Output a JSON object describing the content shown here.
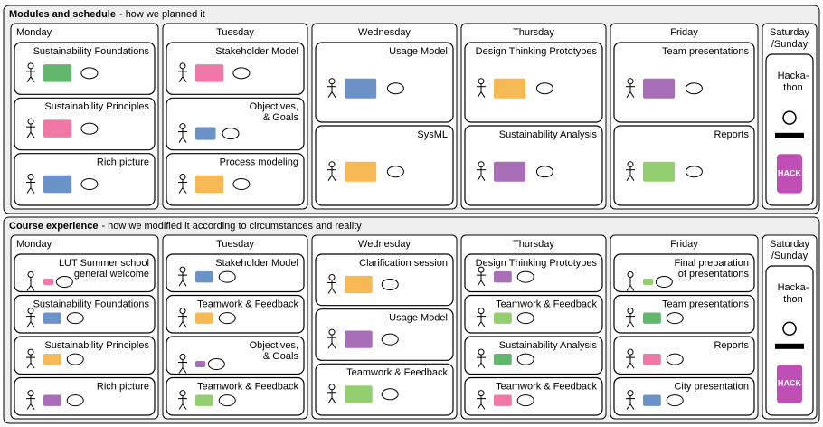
{
  "sections": [
    {
      "title": "Modules and schedule",
      "subtitle": "- how we planned it",
      "days": [
        {
          "name": [
            "Monday"
          ],
          "cards": [
            {
              "label": [
                "Sustainability Foundations"
              ]
            },
            {
              "label": [
                "Sustainability Principles"
              ]
            },
            {
              "label": [
                "Rich picture"
              ]
            }
          ]
        },
        {
          "name": [
            "Tuesday"
          ],
          "cards": [
            {
              "label": [
                "Stakeholder Model"
              ]
            },
            {
              "label": [
                "Objectives,",
                "& Goals"
              ]
            },
            {
              "label": [
                "Process modeling"
              ]
            }
          ]
        },
        {
          "name": [
            "Wednesday"
          ],
          "cards": [
            {
              "label": [
                "Usage Model"
              ]
            },
            {
              "label": [
                "SysML"
              ]
            }
          ]
        },
        {
          "name": [
            "Thursday"
          ],
          "cards": [
            {
              "label": [
                "Design Thinking Prototypes"
              ]
            },
            {
              "label": [
                "Sustainability Analysis"
              ]
            }
          ]
        },
        {
          "name": [
            "Friday"
          ],
          "cards": [
            {
              "label": [
                "Team presentations"
              ]
            },
            {
              "label": [
                "Reports"
              ]
            }
          ]
        },
        {
          "name": [
            "Saturday",
            "/Sunday"
          ],
          "cards": [
            {
              "label": [
                "Hacka-",
                "thon"
              ],
              "badge": "HACK"
            }
          ]
        }
      ]
    },
    {
      "title": "Course experience",
      "subtitle": "- how we modified it according to circumstances and reality",
      "days": [
        {
          "name": [
            "Monday"
          ],
          "cards": [
            {
              "label": [
                "LUT Summer school",
                "general welcome"
              ]
            },
            {
              "label": [
                "Sustainability Foundations"
              ]
            },
            {
              "label": [
                "Sustainability Principles"
              ]
            },
            {
              "label": [
                "Rich picture"
              ]
            }
          ]
        },
        {
          "name": [
            "Tuesday"
          ],
          "cards": [
            {
              "label": [
                "Stakeholder Model"
              ]
            },
            {
              "label": [
                "Teamwork & Feedback"
              ]
            },
            {
              "label": [
                "Objectives,",
                "& Goals"
              ]
            },
            {
              "label": [
                "Teamwork & Feedback"
              ]
            }
          ]
        },
        {
          "name": [
            "Wednesday"
          ],
          "cards": [
            {
              "label": [
                "Clarification session"
              ]
            },
            {
              "label": [
                "Usage Model"
              ]
            },
            {
              "label": [
                "Teamwork & Feedback"
              ]
            }
          ]
        },
        {
          "name": [
            "Thursday"
          ],
          "cards": [
            {
              "label": [
                "Design Thinking Prototypes"
              ]
            },
            {
              "label": [
                "Teamwork & Feedback"
              ]
            },
            {
              "label": [
                "Sustainability Analysis"
              ]
            },
            {
              "label": [
                "Teamwork & Feedback"
              ]
            }
          ]
        },
        {
          "name": [
            "Friday"
          ],
          "cards": [
            {
              "label": [
                "Final preparation",
                "of presentations"
              ]
            },
            {
              "label": [
                "Team presentations"
              ]
            },
            {
              "label": [
                "Reports"
              ]
            },
            {
              "label": [
                "City presentation"
              ]
            }
          ]
        },
        {
          "name": [
            "Saturday",
            "/Sunday"
          ],
          "cards": [
            {
              "label": [
                "Hacka-",
                "thon"
              ],
              "badge": "HACK"
            }
          ]
        }
      ]
    }
  ]
}
